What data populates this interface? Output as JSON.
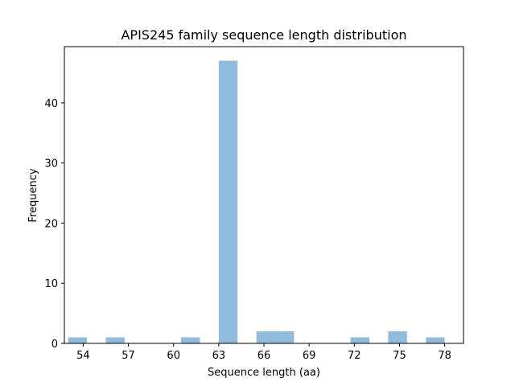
{
  "chart_data": {
    "type": "bar",
    "title": "APIS245 family sequence length distribution",
    "xlabel": "Sequence length (aa)",
    "ylabel": "Frequency",
    "xlim": [
      52.75,
      79.25
    ],
    "ylim": [
      0,
      49.35
    ],
    "xticks": [
      54,
      57,
      60,
      63,
      66,
      69,
      72,
      75,
      78
    ],
    "yticks": [
      0,
      10,
      20,
      30,
      40
    ],
    "bar_color": "#8fbbdc",
    "bins": [
      {
        "start": 53.0,
        "end": 54.25,
        "count": 1
      },
      {
        "start": 55.5,
        "end": 56.75,
        "count": 1
      },
      {
        "start": 60.5,
        "end": 61.75,
        "count": 1
      },
      {
        "start": 63.0,
        "end": 64.25,
        "count": 47
      },
      {
        "start": 65.5,
        "end": 66.75,
        "count": 2
      },
      {
        "start": 66.75,
        "end": 68.0,
        "count": 2
      },
      {
        "start": 71.75,
        "end": 73.0,
        "count": 1
      },
      {
        "start": 74.25,
        "end": 75.5,
        "count": 2
      },
      {
        "start": 76.75,
        "end": 78.0,
        "count": 1
      }
    ]
  }
}
